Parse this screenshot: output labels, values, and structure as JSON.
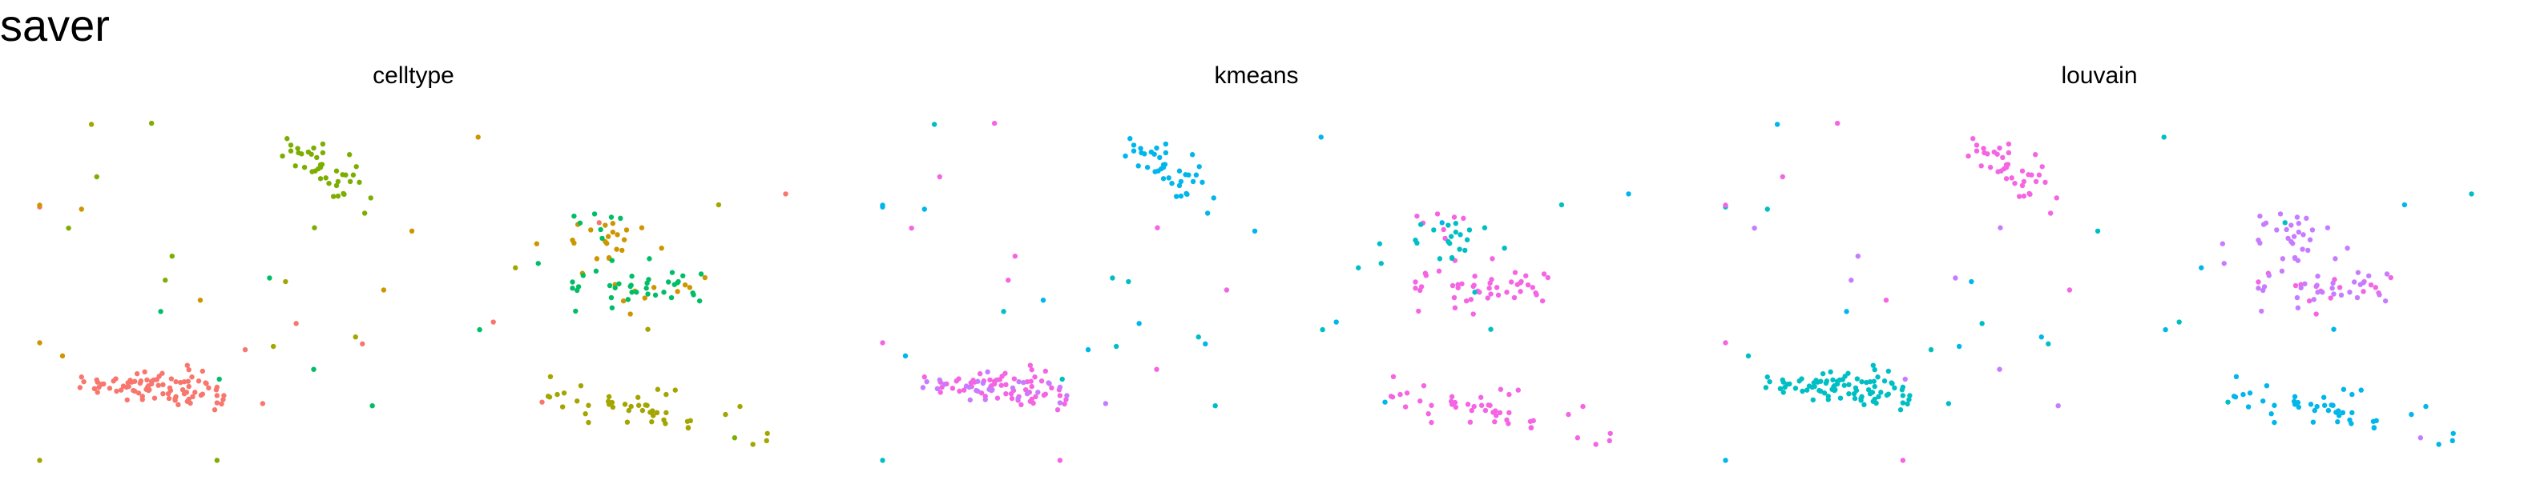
{
  "title": "saver",
  "chart_data": [
    {
      "type": "scatter",
      "title": "celltype",
      "xlabel": "",
      "ylabel": "",
      "grid": false,
      "legend": "none",
      "xlim": [
        0,
        100
      ],
      "ylim": [
        0,
        100
      ],
      "series": [
        {
          "color": "#F8766D",
          "points": []
        },
        {
          "color": "#CD9600",
          "points": []
        },
        {
          "color": "#7CAE00",
          "points": []
        },
        {
          "color": "#00BE67",
          "points": []
        },
        {
          "color": "#00A9FF",
          "points": []
        },
        {
          "color": "#C77CFF",
          "points": []
        },
        {
          "color": "#FF61CC",
          "points": []
        },
        {
          "color": "#A3A500",
          "points": []
        }
      ]
    },
    {
      "type": "scatter",
      "title": "kmeans",
      "xlabel": "",
      "ylabel": "",
      "grid": false,
      "legend": "none",
      "xlim": [
        0,
        100
      ],
      "ylim": [
        0,
        100
      ],
      "series": [
        {
          "color": "#00B6EB",
          "points": []
        },
        {
          "color": "#F564E3",
          "points": []
        },
        {
          "color": "#C77CFF",
          "points": []
        },
        {
          "color": "#00BFC4",
          "points": []
        }
      ]
    },
    {
      "type": "scatter",
      "title": "louvain",
      "xlabel": "",
      "ylabel": "",
      "grid": false,
      "legend": "none",
      "xlim": [
        0,
        100
      ],
      "ylim": [
        0,
        100
      ],
      "series": [
        {
          "color": "#00BFC4",
          "points": []
        },
        {
          "color": "#F564E3",
          "points": []
        },
        {
          "color": "#C77CFF",
          "points": []
        },
        {
          "color": "#00B6EB",
          "points": []
        }
      ]
    }
  ]
}
